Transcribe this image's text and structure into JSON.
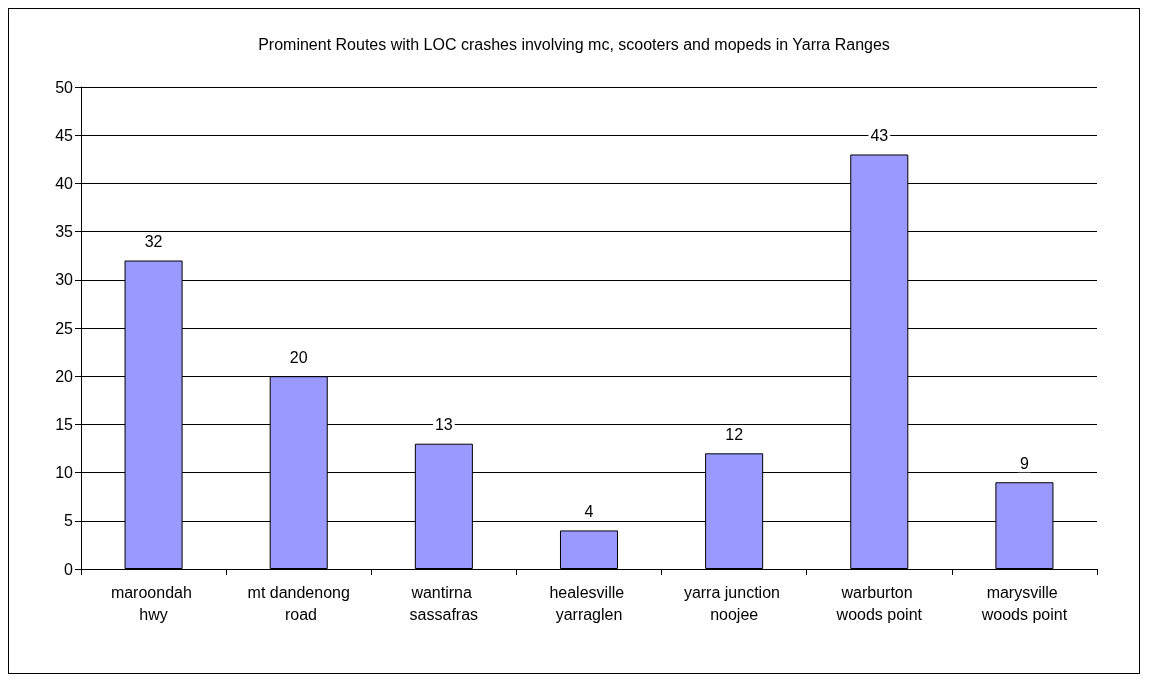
{
  "chart_data": {
    "type": "bar",
    "title": "Prominent Routes with LOC crashes involving mc, scooters and mopeds in Yarra Ranges",
    "categories": [
      "maroondah hwy",
      "mt dandenong road",
      "wantirna sassafras",
      "healesville yarraglen",
      "yarra junction noojee",
      "warburton woods point",
      "marysville woods point"
    ],
    "values": [
      32,
      20,
      13,
      4,
      12,
      43,
      9
    ],
    "color": "#9999ff",
    "ylim": [
      0,
      50
    ],
    "yticks": [
      0,
      5,
      10,
      15,
      20,
      25,
      30,
      35,
      40,
      45,
      50
    ],
    "grid": "y",
    "data_labels": true
  }
}
